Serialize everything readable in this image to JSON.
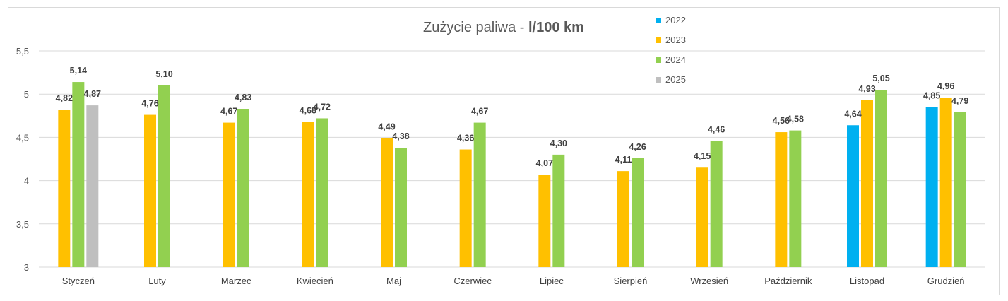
{
  "chart_data": {
    "type": "bar",
    "title": "Zużycie paliwa - ",
    "title_bold": "l/100 km",
    "ylim": [
      3,
      5.5
    ],
    "yticks": [
      "3",
      "3,5",
      "4",
      "4,5",
      "5",
      "5,5"
    ],
    "ytick_values": [
      3,
      3.5,
      4,
      4.5,
      5,
      5.5
    ],
    "grid": true,
    "legend_position": "top-center",
    "categories": [
      "Styczeń",
      "Luty",
      "Marzec",
      "Kwiecień",
      "Maj",
      "Czerwiec",
      "Lipiec",
      "Sierpień",
      "Wrzesień",
      "Październik",
      "Listopad",
      "Grudzień"
    ],
    "series": [
      {
        "name": "2022",
        "color": "#00B0F0",
        "values": [
          null,
          null,
          null,
          null,
          null,
          null,
          null,
          null,
          null,
          null,
          4.64,
          4.85
        ],
        "labels": [
          null,
          null,
          null,
          null,
          null,
          null,
          null,
          null,
          null,
          null,
          "4,64",
          "4,85"
        ]
      },
      {
        "name": "2023",
        "color": "#FFC000",
        "values": [
          4.82,
          4.76,
          4.67,
          4.68,
          4.49,
          4.36,
          4.07,
          4.11,
          4.15,
          4.56,
          4.93,
          4.96
        ],
        "labels": [
          "4,82",
          "4,76",
          "4,67",
          "4,68",
          "4,49",
          "4,36",
          "4,07",
          "4,11",
          "4,15",
          "4,56",
          "4,93",
          "4,96"
        ]
      },
      {
        "name": "2024",
        "color": "#92D050",
        "values": [
          5.14,
          5.1,
          4.83,
          4.72,
          4.38,
          4.67,
          4.3,
          4.26,
          4.46,
          4.58,
          5.05,
          4.79
        ],
        "labels": [
          "5,14",
          "5,10",
          "4,83",
          "4,72",
          "4,38",
          "4,67",
          "4,30",
          "4,26",
          "4,46",
          "4,58",
          "5,05",
          "4,79"
        ]
      },
      {
        "name": "2025",
        "color": "#BFBFBF",
        "values": [
          4.87,
          null,
          null,
          null,
          null,
          null,
          null,
          null,
          null,
          null,
          null,
          null
        ],
        "labels": [
          "4,87",
          null,
          null,
          null,
          null,
          null,
          null,
          null,
          null,
          null,
          null,
          null
        ]
      }
    ]
  },
  "colors": {
    "gridline": "#d9d9d9",
    "bar_2022": "#00B0F0",
    "bar_2023": "#FFC000",
    "bar_2024": "#92D050",
    "bar_2025": "#BFBFBF"
  }
}
